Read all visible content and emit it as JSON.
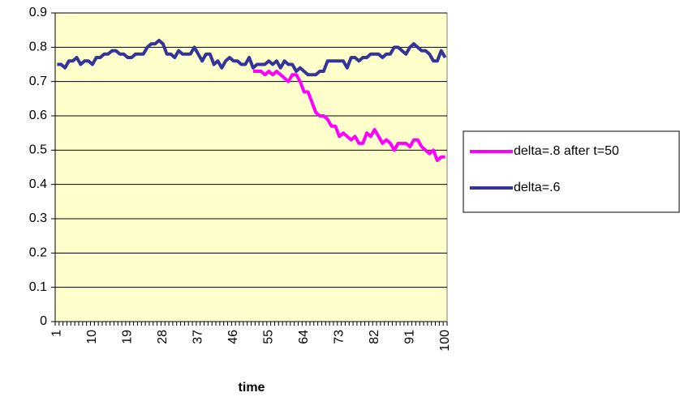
{
  "chart_data": {
    "type": "line",
    "x_label": "time",
    "categories": [
      "1",
      null,
      null,
      null,
      null,
      null,
      null,
      null,
      null,
      "10",
      null,
      null,
      null,
      null,
      null,
      null,
      null,
      null,
      "19",
      null,
      null,
      null,
      null,
      null,
      null,
      null,
      null,
      "28",
      null,
      null,
      null,
      null,
      null,
      null,
      null,
      null,
      "37",
      null,
      null,
      null,
      null,
      null,
      null,
      null,
      null,
      "46",
      null,
      null,
      null,
      null,
      null,
      null,
      null,
      null,
      "55",
      null,
      null,
      null,
      null,
      null,
      null,
      null,
      null,
      "64",
      null,
      null,
      null,
      null,
      null,
      null,
      null,
      null,
      "73",
      null,
      null,
      null,
      null,
      null,
      null,
      null,
      null,
      "82",
      null,
      null,
      null,
      null,
      null,
      null,
      null,
      null,
      "91",
      null,
      null,
      null,
      null,
      null,
      null,
      null,
      null,
      "100"
    ],
    "series": [
      {
        "name": "delta=.8 after t=50",
        "color": "#ff00ff",
        "values": [
          null,
          null,
          null,
          null,
          null,
          null,
          null,
          null,
          null,
          null,
          null,
          null,
          null,
          null,
          null,
          null,
          null,
          null,
          null,
          null,
          null,
          null,
          null,
          null,
          null,
          null,
          null,
          null,
          null,
          null,
          null,
          null,
          null,
          null,
          null,
          null,
          null,
          null,
          null,
          null,
          null,
          null,
          null,
          null,
          null,
          null,
          null,
          null,
          null,
          null,
          0.73,
          0.73,
          0.73,
          0.72,
          0.73,
          0.72,
          0.73,
          0.72,
          0.71,
          0.7,
          0.72,
          0.72,
          0.7,
          0.67,
          0.67,
          0.64,
          0.61,
          0.6,
          0.6,
          0.59,
          0.57,
          0.57,
          0.54,
          0.55,
          0.54,
          0.53,
          0.54,
          0.52,
          0.52,
          0.55,
          0.54,
          0.56,
          0.54,
          0.52,
          0.53,
          0.52,
          0.5,
          0.52,
          0.52,
          0.52,
          0.51,
          0.53,
          0.53,
          0.51,
          0.5,
          0.49,
          0.5,
          0.47,
          0.48,
          0.48
        ]
      },
      {
        "name": "delta=.6",
        "color": "#333399",
        "values": [
          0.75,
          0.75,
          0.74,
          0.76,
          0.76,
          0.77,
          0.75,
          0.76,
          0.76,
          0.75,
          0.77,
          0.77,
          0.78,
          0.78,
          0.79,
          0.79,
          0.78,
          0.78,
          0.77,
          0.77,
          0.78,
          0.78,
          0.78,
          0.8,
          0.81,
          0.81,
          0.82,
          0.81,
          0.78,
          0.78,
          0.77,
          0.79,
          0.78,
          0.78,
          0.78,
          0.8,
          0.78,
          0.76,
          0.78,
          0.78,
          0.75,
          0.76,
          0.74,
          0.76,
          0.77,
          0.76,
          0.76,
          0.75,
          0.75,
          0.77,
          0.74,
          0.75,
          0.75,
          0.75,
          0.76,
          0.75,
          0.76,
          0.74,
          0.76,
          0.75,
          0.75,
          0.73,
          0.74,
          0.73,
          0.72,
          0.72,
          0.72,
          0.73,
          0.73,
          0.76,
          0.76,
          0.76,
          0.76,
          0.76,
          0.74,
          0.77,
          0.77,
          0.76,
          0.77,
          0.77,
          0.78,
          0.78,
          0.78,
          0.77,
          0.78,
          0.78,
          0.8,
          0.8,
          0.79,
          0.78,
          0.8,
          0.81,
          0.8,
          0.79,
          0.79,
          0.78,
          0.76,
          0.76,
          0.79,
          0.77
        ]
      }
    ],
    "ylim": [
      0,
      0.9
    ],
    "yticks": [
      0,
      0.1,
      0.2,
      0.3,
      0.4,
      0.5,
      0.6,
      0.7,
      0.8,
      0.9
    ],
    "grid": true,
    "plot_background": "#ffffcc",
    "legend": "right"
  }
}
